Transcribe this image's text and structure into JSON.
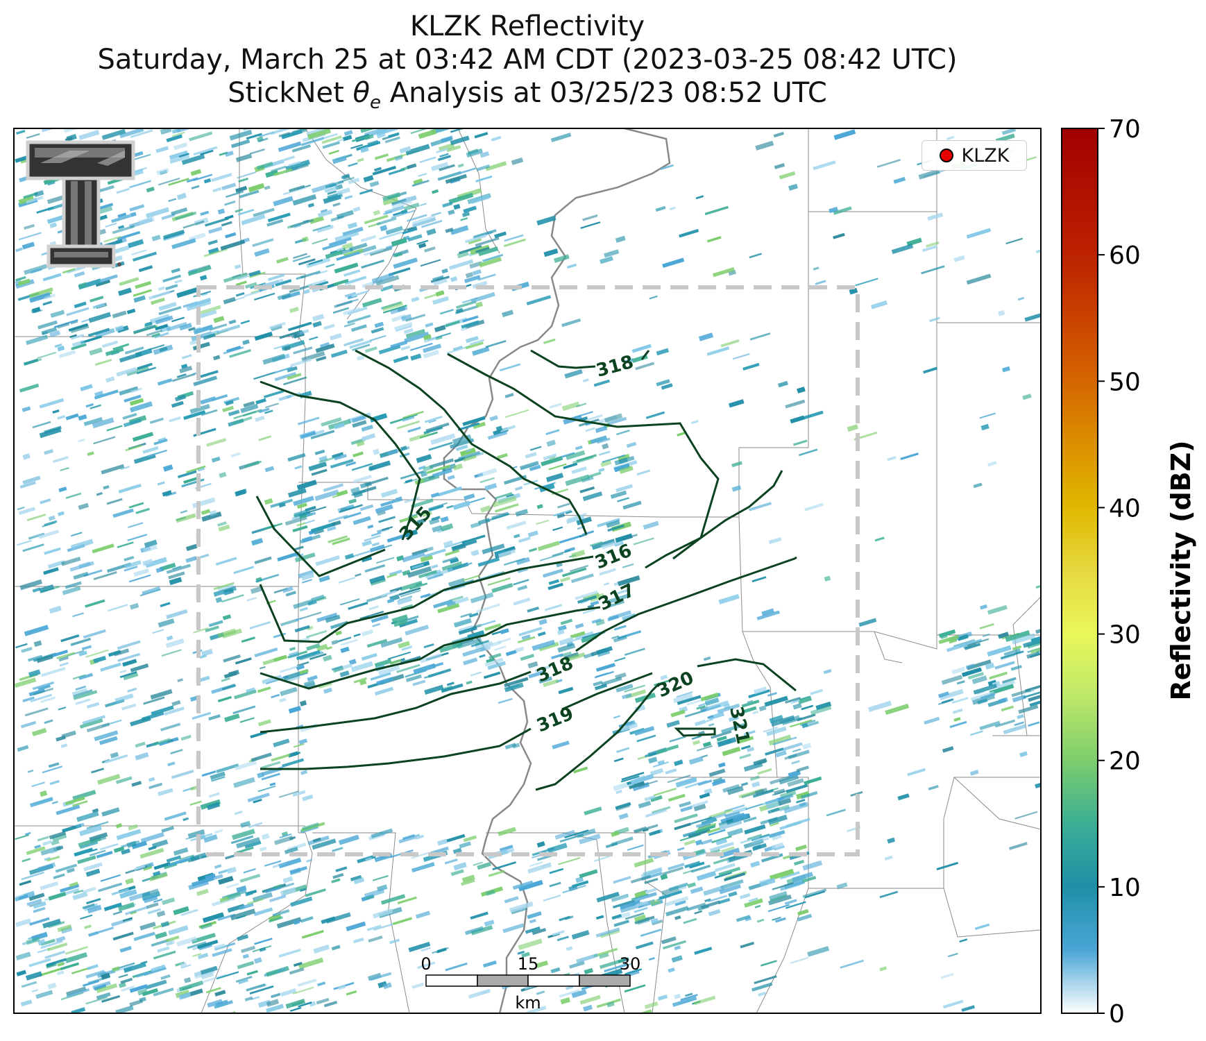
{
  "title": {
    "line1": "KLZK Reflectivity",
    "line2": "Saturday, March 25 at 03:42 AM CDT (2023-03-25 08:42 UTC)",
    "line3_prefix": "StickNet ",
    "line3_symbol": "θ",
    "line3_sub": "e",
    "line3_suffix": " Analysis at 03/25/23 08:52 UTC"
  },
  "legend": {
    "label": "KLZK",
    "marker_color": "#e60000"
  },
  "colorbar": {
    "title": "Reflectivity (dBZ)",
    "ticks": [
      "0",
      "10",
      "20",
      "30",
      "40",
      "50",
      "60",
      "70"
    ],
    "vmin": 0,
    "vmax": 70,
    "stops": [
      {
        "v": 0,
        "c": "#ffffff"
      },
      {
        "v": 5,
        "c": "#4aa6d6"
      },
      {
        "v": 10,
        "c": "#1f8fa8"
      },
      {
        "v": 15,
        "c": "#3cae94"
      },
      {
        "v": 20,
        "c": "#7ccd6c"
      },
      {
        "v": 25,
        "c": "#bde86a"
      },
      {
        "v": 30,
        "c": "#e9f75a"
      },
      {
        "v": 35,
        "c": "#e6d840"
      },
      {
        "v": 40,
        "c": "#e0b800"
      },
      {
        "v": 45,
        "c": "#dc9000"
      },
      {
        "v": 50,
        "c": "#d46500"
      },
      {
        "v": 55,
        "c": "#c94200"
      },
      {
        "v": 60,
        "c": "#bc2200"
      },
      {
        "v": 70,
        "c": "#a00000"
      }
    ]
  },
  "contours": {
    "labels": [
      "315",
      "316",
      "317",
      "318",
      "318",
      "319",
      "320",
      "321"
    ],
    "color": "#0b4220"
  },
  "scale_bar": {
    "ticks": [
      "0",
      "15",
      "30"
    ],
    "unit": "km"
  },
  "logo": {
    "name": "Texas Tech double-T logo"
  }
}
